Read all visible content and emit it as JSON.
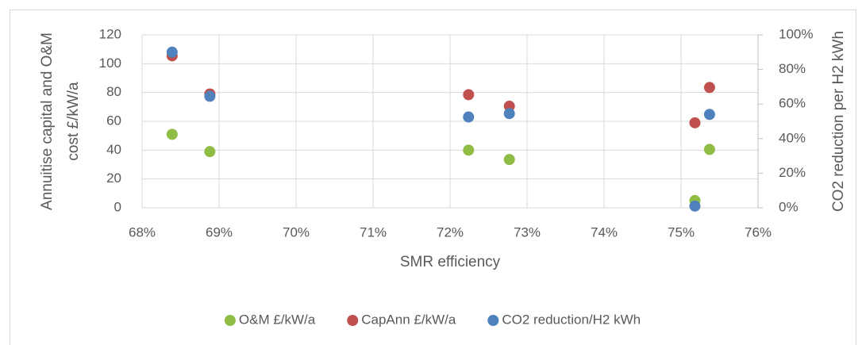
{
  "chart_data": {
    "type": "scatter",
    "xlabel": "SMR efficiency",
    "ylabel": [
      "Annuitise capital and O&M",
      "cost £/kW/a"
    ],
    "y2label": "CO2 reduction per H2 kWh",
    "xlim": [
      68,
      76
    ],
    "xticks": [
      {
        "value": 68,
        "label": "68%"
      },
      {
        "value": 69,
        "label": "69%"
      },
      {
        "value": 70,
        "label": "70%"
      },
      {
        "value": 71,
        "label": "71%"
      },
      {
        "value": 72,
        "label": "72%"
      },
      {
        "value": 73,
        "label": "73%"
      },
      {
        "value": 74,
        "label": "74%"
      },
      {
        "value": 75,
        "label": "75%"
      },
      {
        "value": 76,
        "label": "76%"
      }
    ],
    "ylim": [
      0,
      120
    ],
    "yticks": [
      0,
      20,
      40,
      60,
      80,
      100,
      120
    ],
    "y2lim": [
      0,
      100
    ],
    "y2ticks": [
      {
        "value": 0,
        "label": "0%"
      },
      {
        "value": 20,
        "label": "20%"
      },
      {
        "value": 40,
        "label": "40%"
      },
      {
        "value": 60,
        "label": "60%"
      },
      {
        "value": 80,
        "label": "80%"
      },
      {
        "value": 100,
        "label": "100%"
      }
    ],
    "grid": true,
    "legend": "bottom",
    "series": [
      {
        "name": "O&M £/kW/a",
        "color": "#8fbc45",
        "x": [
          68.39,
          68.88,
          72.24,
          72.77,
          75.18,
          75.37
        ],
        "values": [
          51,
          39,
          40,
          33.5,
          5,
          40.5
        ]
      },
      {
        "name": "CapAnn £/kW/a",
        "color": "#c0504d",
        "x": [
          68.39,
          68.88,
          72.24,
          72.77,
          75.18,
          75.37
        ],
        "values": [
          105.5,
          79,
          78.5,
          70.5,
          59,
          83.5
        ]
      },
      {
        "name": "CO2 reduction/H2 kWh",
        "color": "#4f81bd",
        "axis": "y2",
        "x": [
          68.39,
          68.88,
          72.24,
          72.77,
          75.18,
          75.37
        ],
        "values": [
          90,
          64.5,
          52.5,
          54.5,
          1,
          54
        ]
      }
    ]
  }
}
